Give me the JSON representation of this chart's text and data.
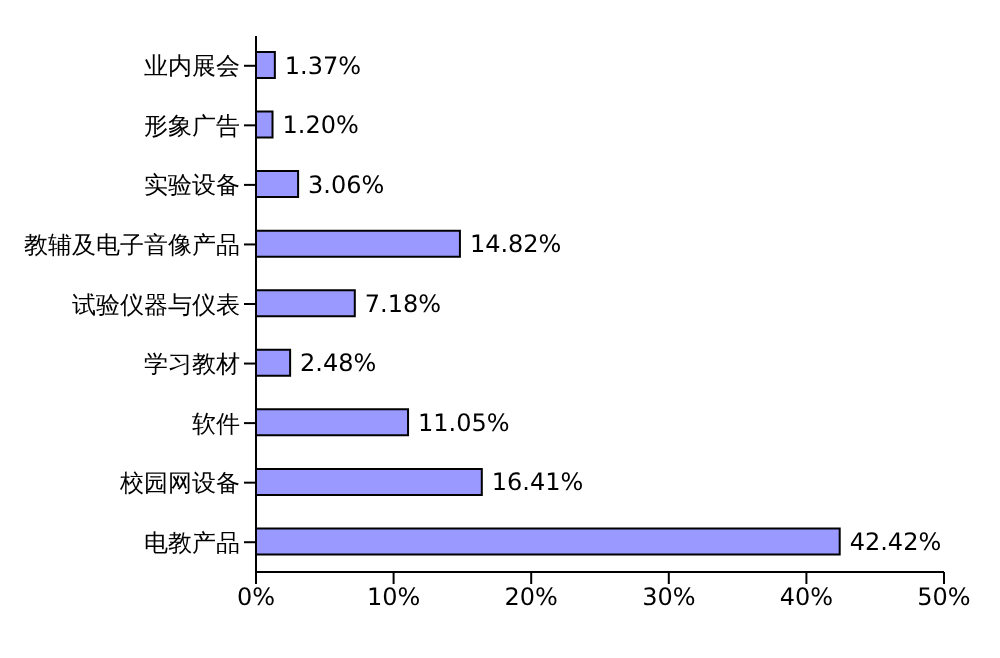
{
  "chart_data": {
    "type": "bar",
    "orientation": "horizontal",
    "categories": [
      "业内展会",
      "形象广告",
      "实验设备",
      "教辅及电子音像产品",
      "试验仪器与仪表",
      "学习教材",
      "软件",
      "校园网设备",
      "电教产品"
    ],
    "values": [
      1.37,
      1.2,
      3.06,
      14.82,
      7.18,
      2.48,
      11.05,
      16.41,
      42.42
    ],
    "value_labels": [
      "1.37%",
      "1.20%",
      "3.06%",
      "14.82%",
      "7.18%",
      "2.48%",
      "11.05%",
      "16.41%",
      "42.42%"
    ],
    "color": "#9999ff",
    "xlim": [
      0,
      50
    ],
    "xticks": [
      {
        "value": 0,
        "label": "0%"
      },
      {
        "value": 10,
        "label": "10%"
      },
      {
        "value": 20,
        "label": "20%"
      },
      {
        "value": 30,
        "label": "30%"
      },
      {
        "value": 40,
        "label": "40%"
      },
      {
        "value": 50,
        "label": "50%"
      }
    ],
    "grid": false,
    "legend": false
  }
}
